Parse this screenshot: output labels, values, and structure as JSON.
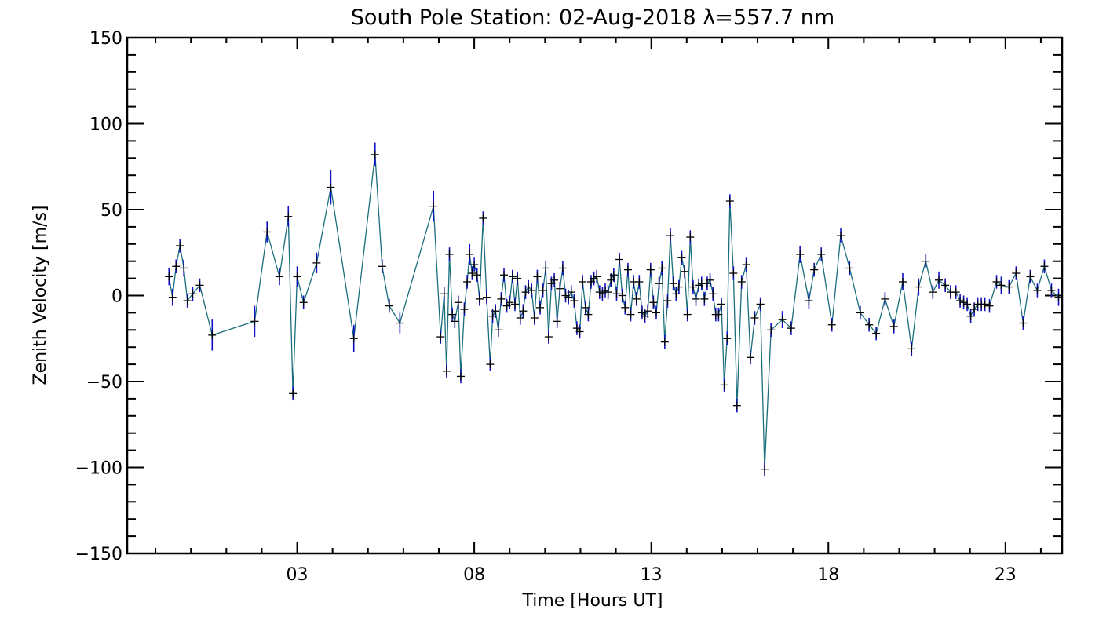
{
  "chart_data": {
    "type": "line",
    "title": "South Pole Station: 02-Aug-2018 λ=557.7 nm",
    "xlabel": "Time [Hours UT]",
    "ylabel": "Zenith Velocity [m/s]",
    "xlim": [
      -1.8,
      24.6
    ],
    "ylim": [
      -150,
      150
    ],
    "x_ticks": [
      3,
      8,
      13,
      18,
      23
    ],
    "x_tick_labels": [
      "03",
      "08",
      "13",
      "18",
      "23"
    ],
    "y_ticks": [
      -150,
      -100,
      -50,
      0,
      50,
      100,
      150
    ],
    "y_tick_labels": [
      "−150",
      "−100",
      "−50",
      "0",
      "50",
      "100",
      "150"
    ],
    "grid": false,
    "legend": "none",
    "colors": {
      "line": "#1b6f7c",
      "errorbar": "#1010c8",
      "marker": "#000000"
    },
    "series": [
      {
        "points": [
          [
            -0.62,
            11,
            5
          ],
          [
            -0.52,
            -1,
            5
          ],
          [
            -0.42,
            17,
            4
          ],
          [
            -0.31,
            29,
            4
          ],
          [
            -0.2,
            16,
            5
          ],
          [
            -0.1,
            -3,
            4
          ],
          [
            0.05,
            1,
            4
          ],
          [
            0.25,
            6,
            4
          ],
          [
            0.6,
            -23,
            9
          ],
          [
            1.8,
            -15,
            9
          ],
          [
            2.15,
            37,
            6
          ],
          [
            2.5,
            11,
            5
          ],
          [
            2.75,
            46,
            6
          ],
          [
            2.88,
            -57,
            4
          ],
          [
            3.0,
            11,
            6
          ],
          [
            3.18,
            -4,
            4
          ],
          [
            3.55,
            19,
            6
          ],
          [
            3.95,
            63,
            10
          ],
          [
            4.6,
            -25,
            8
          ],
          [
            5.2,
            82,
            7
          ],
          [
            5.4,
            17,
            4
          ],
          [
            5.6,
            -6,
            4
          ],
          [
            5.9,
            -16,
            6
          ],
          [
            6.85,
            52,
            9
          ],
          [
            7.05,
            -24,
            4
          ],
          [
            7.15,
            1,
            4
          ],
          [
            7.22,
            -44,
            4
          ],
          [
            7.3,
            24,
            4
          ],
          [
            7.38,
            -11,
            4
          ],
          [
            7.45,
            -15,
            4
          ],
          [
            7.55,
            -4,
            4
          ],
          [
            7.62,
            -47,
            4
          ],
          [
            7.72,
            -8,
            4
          ],
          [
            7.8,
            8,
            4
          ],
          [
            7.87,
            24,
            6
          ],
          [
            7.94,
            13,
            4
          ],
          [
            8.0,
            18,
            4
          ],
          [
            8.08,
            12,
            4
          ],
          [
            8.15,
            -2,
            4
          ],
          [
            8.25,
            45,
            4
          ],
          [
            8.35,
            -1,
            4
          ],
          [
            8.45,
            -40,
            4
          ],
          [
            8.52,
            -12,
            4
          ],
          [
            8.6,
            -9,
            4
          ],
          [
            8.68,
            -20,
            4
          ],
          [
            8.76,
            -2,
            4
          ],
          [
            8.84,
            12,
            4
          ],
          [
            8.92,
            -6,
            4
          ],
          [
            9.0,
            -4,
            4
          ],
          [
            9.08,
            11,
            4
          ],
          [
            9.15,
            -5,
            4
          ],
          [
            9.22,
            10,
            4
          ],
          [
            9.3,
            -13,
            4
          ],
          [
            9.38,
            -9,
            4
          ],
          [
            9.45,
            2,
            4
          ],
          [
            9.53,
            5,
            4
          ],
          [
            9.62,
            3,
            4
          ],
          [
            9.7,
            -13,
            4
          ],
          [
            9.78,
            11,
            4
          ],
          [
            9.86,
            -7,
            4
          ],
          [
            9.94,
            3,
            4
          ],
          [
            10.02,
            16,
            4
          ],
          [
            10.1,
            -24,
            4
          ],
          [
            10.18,
            7,
            4
          ],
          [
            10.26,
            9,
            4
          ],
          [
            10.34,
            -15,
            4
          ],
          [
            10.42,
            4,
            4
          ],
          [
            10.5,
            16,
            4
          ],
          [
            10.58,
            0,
            4
          ],
          [
            10.66,
            -1,
            4
          ],
          [
            10.74,
            2,
            4
          ],
          [
            10.82,
            -3,
            4
          ],
          [
            10.9,
            -19,
            4
          ],
          [
            10.98,
            -21,
            4
          ],
          [
            11.06,
            8,
            4
          ],
          [
            11.14,
            -7,
            4
          ],
          [
            11.22,
            -11,
            4
          ],
          [
            11.3,
            8,
            4
          ],
          [
            11.38,
            10,
            4
          ],
          [
            11.46,
            11,
            4
          ],
          [
            11.54,
            2,
            4
          ],
          [
            11.62,
            1,
            4
          ],
          [
            11.7,
            3,
            4
          ],
          [
            11.78,
            2,
            4
          ],
          [
            11.86,
            9,
            4
          ],
          [
            11.94,
            12,
            4
          ],
          [
            12.02,
            1,
            4
          ],
          [
            12.1,
            21,
            4
          ],
          [
            12.18,
            0,
            4
          ],
          [
            12.26,
            -7,
            4
          ],
          [
            12.34,
            15,
            4
          ],
          [
            12.42,
            -11,
            4
          ],
          [
            12.5,
            8,
            4
          ],
          [
            12.58,
            -2,
            4
          ],
          [
            12.66,
            8,
            4
          ],
          [
            12.74,
            -10,
            4
          ],
          [
            12.82,
            -12,
            4
          ],
          [
            12.9,
            -9,
            4
          ],
          [
            12.98,
            15,
            4
          ],
          [
            13.06,
            -4,
            4
          ],
          [
            13.14,
            -10,
            4
          ],
          [
            13.22,
            7,
            4
          ],
          [
            13.3,
            16,
            4
          ],
          [
            13.38,
            -27,
            4
          ],
          [
            13.46,
            -3,
            4
          ],
          [
            13.54,
            35,
            4
          ],
          [
            13.62,
            7,
            4
          ],
          [
            13.7,
            1,
            4
          ],
          [
            13.78,
            5,
            4
          ],
          [
            13.86,
            22,
            4
          ],
          [
            13.94,
            14,
            4
          ],
          [
            14.02,
            -11,
            4
          ],
          [
            14.1,
            34,
            4
          ],
          [
            14.18,
            5,
            4
          ],
          [
            14.26,
            -2,
            4
          ],
          [
            14.34,
            6,
            4
          ],
          [
            14.42,
            7,
            4
          ],
          [
            14.5,
            -2,
            4
          ],
          [
            14.58,
            7,
            4
          ],
          [
            14.66,
            9,
            4
          ],
          [
            14.74,
            1,
            4
          ],
          [
            14.82,
            -11,
            4
          ],
          [
            14.9,
            -11,
            4
          ],
          [
            14.98,
            -5,
            4
          ],
          [
            15.06,
            -52,
            4
          ],
          [
            15.14,
            -25,
            4
          ],
          [
            15.22,
            55,
            4
          ],
          [
            15.32,
            13,
            4
          ],
          [
            15.42,
            -64,
            4
          ],
          [
            15.55,
            8,
            4
          ],
          [
            15.68,
            18,
            4
          ],
          [
            15.8,
            -36,
            4
          ],
          [
            15.92,
            -13,
            4
          ],
          [
            16.08,
            -5,
            4
          ],
          [
            16.2,
            -101,
            4
          ],
          [
            16.38,
            -20,
            4
          ],
          [
            16.7,
            -14,
            5
          ],
          [
            16.95,
            -19,
            4
          ],
          [
            17.2,
            24,
            5
          ],
          [
            17.45,
            -3,
            5
          ],
          [
            17.6,
            15,
            4
          ],
          [
            17.8,
            24,
            4
          ],
          [
            18.1,
            -17,
            4
          ],
          [
            18.35,
            35,
            4
          ],
          [
            18.6,
            16,
            4
          ],
          [
            18.9,
            -10,
            4
          ],
          [
            19.15,
            -17,
            4
          ],
          [
            19.35,
            -22,
            4
          ],
          [
            19.6,
            -2,
            4
          ],
          [
            19.85,
            -18,
            4
          ],
          [
            20.1,
            8,
            5
          ],
          [
            20.35,
            -31,
            4
          ],
          [
            20.55,
            5,
            5
          ],
          [
            20.75,
            20,
            4
          ],
          [
            20.95,
            2,
            4
          ],
          [
            21.12,
            9,
            5
          ],
          [
            21.3,
            6,
            4
          ],
          [
            21.45,
            2,
            4
          ],
          [
            21.6,
            2,
            4
          ],
          [
            21.72,
            -3,
            4
          ],
          [
            21.82,
            -4,
            4
          ],
          [
            21.92,
            -5,
            4
          ],
          [
            22.02,
            -12,
            4
          ],
          [
            22.12,
            -8,
            4
          ],
          [
            22.22,
            -5,
            4
          ],
          [
            22.32,
            -5,
            4
          ],
          [
            22.42,
            -5,
            4
          ],
          [
            22.55,
            -6,
            4
          ],
          [
            22.75,
            8,
            4
          ],
          [
            22.88,
            6,
            5
          ],
          [
            23.1,
            5,
            4
          ],
          [
            23.3,
            13,
            4
          ],
          [
            23.5,
            -16,
            4
          ],
          [
            23.7,
            11,
            4
          ],
          [
            23.9,
            3,
            4
          ],
          [
            24.1,
            17,
            4
          ],
          [
            24.3,
            3,
            4
          ],
          [
            24.5,
            -1,
            5
          ]
        ]
      }
    ]
  }
}
